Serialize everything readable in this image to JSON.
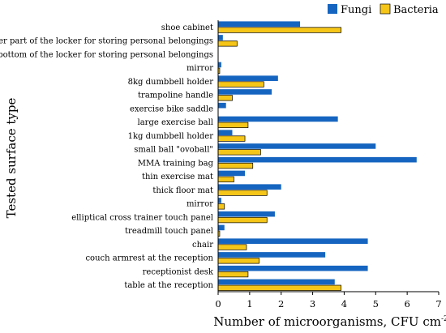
{
  "chart_data": {
    "type": "bar",
    "orientation": "horizontal",
    "xlabel": "Number of microorganisms, CFU cm",
    "xlabel_superscript": "-2",
    "ylabel": "Tested surface type",
    "xlim": [
      0,
      7
    ],
    "xticks": [
      "0",
      "1",
      "2",
      "3",
      "4",
      "5",
      "6",
      "7"
    ],
    "legend_position": "top-right",
    "grid": false,
    "categories": [
      "shoe cabinet",
      "outer part of the locker for storing personal belongings",
      "bottom of the locker for storing personal belongings",
      "mirror",
      "8kg dumbbell holder",
      "trampoline handle",
      "exercise bike saddle",
      "large exercise ball",
      "1kg dumbbell holder",
      "small ball \"ovoball\"",
      "MMA training bag",
      "thin exercise mat",
      "thick floor mat",
      "mirror",
      "elliptical cross trainer touch panel",
      "treadmill touch panel",
      "chair",
      "couch armrest at the reception",
      "receptionist desk",
      "table at the reception"
    ],
    "series": [
      {
        "name": "Fungi",
        "color": "#1565C0",
        "values": [
          2.6,
          0.15,
          0,
          0.1,
          1.9,
          1.7,
          0.25,
          3.8,
          0.45,
          5.0,
          6.3,
          0.85,
          2.0,
          0.1,
          1.8,
          0.2,
          4.75,
          3.4,
          4.75,
          3.7
        ]
      },
      {
        "name": "Bacteria",
        "color": "#F5C518",
        "values": [
          3.9,
          0.6,
          0,
          0.05,
          1.45,
          0.45,
          0,
          0.95,
          0.85,
          1.35,
          1.1,
          0.5,
          1.55,
          0.2,
          1.55,
          0.05,
          0.9,
          1.3,
          0.95,
          3.9
        ]
      }
    ]
  }
}
